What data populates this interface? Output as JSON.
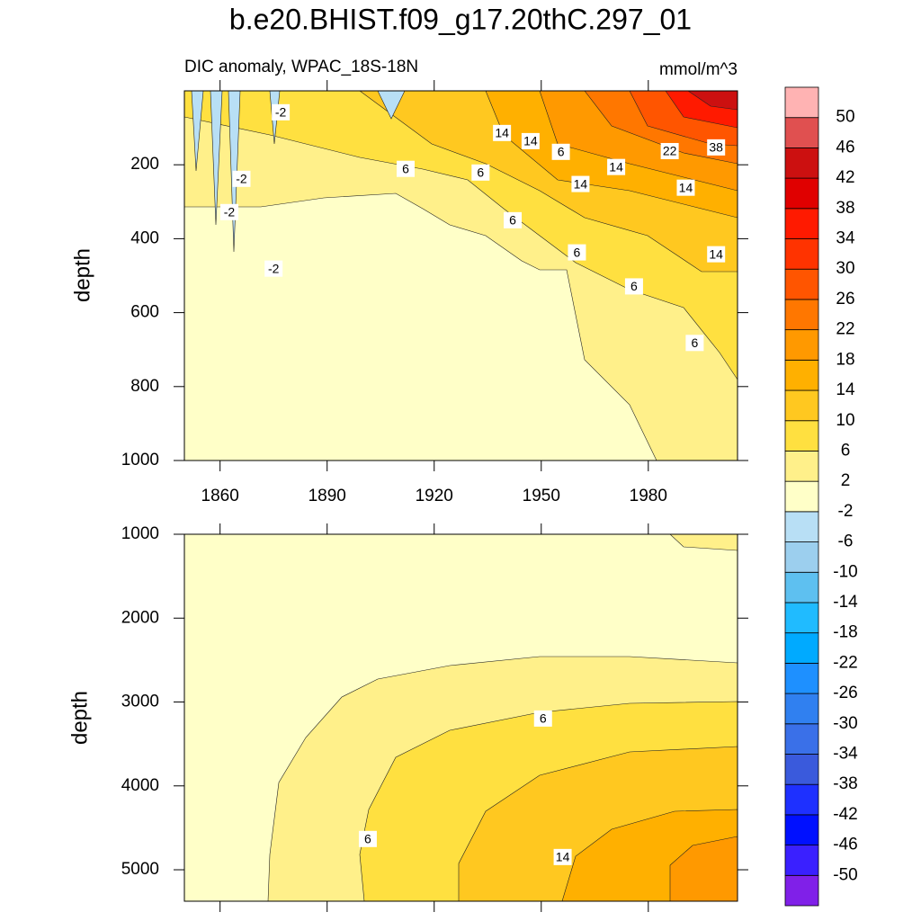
{
  "chart_data": [
    {
      "type": "contour",
      "title": "b.e20.BHIST.f09_g17.20thC.297_01",
      "subtitle_left": "DIC anomaly, WPAC_18S-18N",
      "subtitle_right": "mmol/m^3",
      "ylabel": "depth",
      "xlim": [
        1850,
        2005
      ],
      "xticks": [
        1860,
        1890,
        1920,
        1950,
        1980
      ],
      "ylim": [
        0,
        1000
      ],
      "yticks": [
        200,
        400,
        600,
        800,
        1000
      ],
      "y_inverted": true,
      "contour_labels": [
        {
          "value": -2,
          "x": 1877,
          "y": 58
        },
        {
          "value": 14,
          "x": 1939,
          "y": 114
        },
        {
          "value": 14,
          "x": 1947,
          "y": 136
        },
        {
          "value": 6,
          "x": 1955.5,
          "y": 165
        },
        {
          "value": 22,
          "x": 1986,
          "y": 163
        },
        {
          "value": 38,
          "x": 1999,
          "y": 153
        },
        {
          "value": 6,
          "x": 1912,
          "y": 211
        },
        {
          "value": 6,
          "x": 1933,
          "y": 221
        },
        {
          "value": 14,
          "x": 1961,
          "y": 252
        },
        {
          "value": 14,
          "x": 1971,
          "y": 206
        },
        {
          "value": 14,
          "x": 1990.5,
          "y": 262
        },
        {
          "value": -2,
          "x": 1866,
          "y": 238
        },
        {
          "value": -2,
          "x": 1862.6,
          "y": 328
        },
        {
          "value": 6,
          "x": 1942,
          "y": 350
        },
        {
          "value": 6,
          "x": 1960,
          "y": 437
        },
        {
          "value": 14,
          "x": 1999,
          "y": 442
        },
        {
          "value": -2,
          "x": 1875,
          "y": 481
        },
        {
          "value": 6,
          "x": 1976,
          "y": 529
        },
        {
          "value": 6,
          "x": 1993,
          "y": 682
        }
      ],
      "colorbar": {
        "levels": [
          -50,
          -46,
          -42,
          -38,
          -34,
          -30,
          -26,
          -22,
          -18,
          -14,
          -10,
          -6,
          -2,
          2,
          6,
          10,
          14,
          18,
          22,
          26,
          30,
          34,
          38,
          42,
          46,
          50
        ],
        "colors": [
          "#8020e8",
          "#3a20ff",
          "#0010ff",
          "#1e30ff",
          "#3a5adc",
          "#3a70e8",
          "#3080f0",
          "#1e90ff",
          "#00aaff",
          "#20bbff",
          "#5ec0f0",
          "#9ccfee",
          "#b8dff5",
          "#ffffc8",
          "#fff08a",
          "#ffe040",
          "#ffc820",
          "#ffb000",
          "#ff9900",
          "#ff7700",
          "#ff5500",
          "#ff3300",
          "#ff1a00",
          "#e00000",
          "#cc1010",
          "#e05050",
          "#ffb3b3"
        ]
      }
    },
    {
      "type": "contour",
      "ylabel": "depth",
      "xlim": [
        1850,
        2005
      ],
      "xticks": [
        1860,
        1890,
        1920,
        1950,
        1980
      ],
      "xtick_labels": false,
      "ylim": [
        1000,
        5375
      ],
      "yticks": [
        1000,
        2000,
        3000,
        4000,
        5000
      ],
      "y_inverted": true,
      "contour_labels": [
        {
          "value": 6,
          "x": 1950.5,
          "y": 3197
        },
        {
          "value": 6,
          "x": 1901.4,
          "y": 4633
        },
        {
          "value": 14,
          "x": 1956,
          "y": 4848
        }
      ]
    }
  ]
}
